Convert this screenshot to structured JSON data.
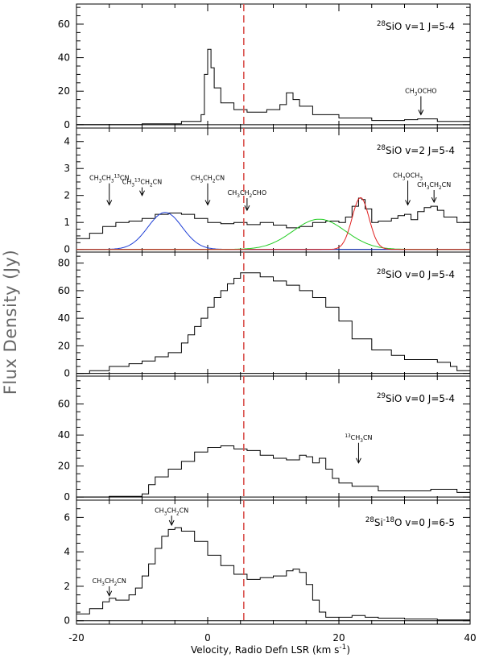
{
  "figure": {
    "ylabel": "Flux Density (Jy)",
    "xlabel": "Velocity, Radio Defn LSR (km s",
    "xlabel_sup": "-1",
    "xlabel_end": ")",
    "xticks": [
      "-20",
      "0",
      "20",
      "40"
    ],
    "marker_velocity": 5.5,
    "marker_color": "#d9534f"
  },
  "chart_data": [
    {
      "type": "line",
      "step": true,
      "label_parts": [
        {
          "t": "28",
          "sup": true
        },
        {
          "t": "SiO v=1 J=5-4"
        }
      ],
      "xlim": [
        -20,
        40
      ],
      "ylim": [
        -2,
        72
      ],
      "yticks": [
        0,
        20,
        40,
        60
      ],
      "x": [
        -20,
        -10,
        -4,
        -1,
        -0.5,
        0,
        0.5,
        1,
        2,
        4,
        6,
        9,
        11,
        12,
        13,
        14,
        16,
        20,
        25,
        30,
        32,
        35,
        40
      ],
      "y": [
        0,
        0.5,
        2,
        6,
        30,
        45,
        34,
        22,
        13,
        9,
        7.5,
        9,
        12,
        19,
        15,
        11,
        6,
        4,
        2.5,
        3,
        3.5,
        2,
        1
      ],
      "annotations": [
        {
          "parts": [
            {
              "t": "CH"
            },
            {
              "t": "3",
              "sub": true
            },
            {
              "t": "OCHO"
            }
          ],
          "x": 32.5,
          "y_tip": 6,
          "y_tail": 17
        }
      ]
    },
    {
      "type": "line",
      "step": true,
      "label_parts": [
        {
          "t": "28",
          "sup": true
        },
        {
          "t": "SiO v=2 J=5-4"
        }
      ],
      "xlim": [
        -20,
        40
      ],
      "ylim": [
        -0.1,
        4.5
      ],
      "yticks": [
        0,
        1,
        2,
        3,
        4
      ],
      "x": [
        -20,
        -18,
        -16,
        -14,
        -12,
        -10,
        -8,
        -6,
        -4,
        -2,
        0,
        2,
        4,
        6,
        8,
        10,
        12,
        14,
        16,
        18,
        20,
        21,
        22,
        23,
        23.5,
        24,
        25,
        26,
        28,
        29,
        30,
        31,
        32,
        33,
        34,
        35,
        36,
        38,
        40
      ],
      "y": [
        0.4,
        0.6,
        0.85,
        1.0,
        1.05,
        1.15,
        1.3,
        1.35,
        1.3,
        1.15,
        1.0,
        0.95,
        1.0,
        0.92,
        1.0,
        0.9,
        0.8,
        0.85,
        1.0,
        1.05,
        1.0,
        1.2,
        1.6,
        1.9,
        1.85,
        1.5,
        1.0,
        1.05,
        1.15,
        1.25,
        1.3,
        1.1,
        1.4,
        1.55,
        1.6,
        1.45,
        1.2,
        1.0,
        0.85
      ],
      "fits": [
        {
          "color": "#1f3fd6",
          "center": -6.5,
          "amplitude": 1.37,
          "sigma": 2.6
        },
        {
          "color": "#22cc22",
          "center": 17,
          "amplitude": 1.12,
          "sigma": 4.0
        },
        {
          "color": "#e02020",
          "center": 23.3,
          "amplitude": 1.92,
          "sigma": 1.3
        }
      ],
      "annotations": [
        {
          "parts": [
            {
              "t": "CH"
            },
            {
              "t": "3",
              "sub": true
            },
            {
              "t": "CH"
            },
            {
              "t": "3",
              "sub": true
            },
            {
              "t": "13",
              "sup": true
            },
            {
              "t": "CN"
            }
          ],
          "x": -15,
          "y_tip": 1.65,
          "y_tail": 2.45,
          "label_above": true
        },
        {
          "parts": [
            {
              "t": "CH"
            },
            {
              "t": "3",
              "sub": true
            },
            {
              "t": "13",
              "sup": true
            },
            {
              "t": "CH"
            },
            {
              "t": "2",
              "sub": true
            },
            {
              "t": "CN"
            }
          ],
          "x": -10,
          "y_tip": 2.0,
          "y_tail": 2.3
        },
        {
          "parts": [
            {
              "t": "CH"
            },
            {
              "t": "3",
              "sub": true
            },
            {
              "t": "CH"
            },
            {
              "t": "2",
              "sub": true
            },
            {
              "t": "CN"
            }
          ],
          "x": 0,
          "y_tip": 1.65,
          "y_tail": 2.45
        },
        {
          "parts": [
            {
              "t": "CH"
            },
            {
              "t": "3",
              "sub": true
            },
            {
              "t": "CH"
            },
            {
              "t": "2",
              "sub": true
            },
            {
              "t": "CHO"
            }
          ],
          "x": 6,
          "y_tip": 1.45,
          "y_tail": 1.9
        },
        {
          "parts": [
            {
              "t": "CH"
            },
            {
              "t": "3",
              "sub": true
            },
            {
              "t": "OCH"
            },
            {
              "t": "3",
              "sub": true
            }
          ],
          "x": 30.5,
          "y_tip": 1.65,
          "y_tail": 2.55,
          "label_above": true
        },
        {
          "parts": [
            {
              "t": "CH"
            },
            {
              "t": "3",
              "sub": true
            },
            {
              "t": "CH"
            },
            {
              "t": "2",
              "sub": true
            },
            {
              "t": "CN"
            }
          ],
          "x": 34.5,
          "y_tip": 1.75,
          "y_tail": 2.2
        }
      ]
    },
    {
      "type": "line",
      "step": true,
      "label_parts": [
        {
          "t": "28",
          "sup": true
        },
        {
          "t": "SiO v=0 J=5-4"
        }
      ],
      "xlim": [
        -20,
        40
      ],
      "ylim": [
        -2,
        88
      ],
      "yticks": [
        0,
        20,
        40,
        60,
        80
      ],
      "x": [
        -20,
        -18,
        -15,
        -12,
        -10,
        -8,
        -6,
        -4,
        -3,
        -2,
        -1,
        0,
        1,
        2,
        3,
        4,
        5,
        6,
        8,
        10,
        12,
        14,
        16,
        18,
        20,
        22,
        25,
        28,
        30,
        32,
        35,
        37,
        38,
        40
      ],
      "y": [
        0,
        2,
        5,
        7,
        9,
        12,
        15,
        22,
        28,
        34,
        40,
        48,
        55,
        60,
        65,
        69,
        73,
        73,
        70,
        67,
        64,
        60,
        55,
        48,
        38,
        25,
        17,
        13,
        10,
        10,
        8,
        5,
        2,
        0
      ],
      "annotations": []
    },
    {
      "type": "line",
      "step": true,
      "label_parts": [
        {
          "t": "29",
          "sup": true
        },
        {
          "t": "SiO v=0 J=5-4"
        }
      ],
      "xlim": [
        -20,
        40
      ],
      "ylim": [
        -2,
        78
      ],
      "yticks": [
        0,
        20,
        40,
        60
      ],
      "x": [
        -20,
        -15,
        -10,
        -9,
        -8,
        -6,
        -4,
        -2,
        0,
        2,
        4,
        6,
        8,
        10,
        12,
        14,
        15,
        16,
        17,
        18,
        19,
        20,
        22,
        24,
        26,
        30,
        34,
        38,
        40
      ],
      "y": [
        0,
        0.5,
        2,
        8,
        13,
        18,
        23,
        29,
        32,
        33,
        31,
        30,
        27,
        25,
        24,
        27,
        26,
        22,
        25,
        18,
        12,
        9,
        7,
        7,
        4,
        4,
        5,
        3,
        2
      ],
      "annotations": [
        {
          "parts": [
            {
              "t": "13",
              "sup": true
            },
            {
              "t": "CH"
            },
            {
              "t": "3",
              "sub": true
            },
            {
              "t": "CN"
            }
          ],
          "x": 23,
          "y_tip": 22,
          "y_tail": 35,
          "label_above": true
        }
      ]
    },
    {
      "type": "line",
      "step": true,
      "label_parts": [
        {
          "t": "28",
          "sup": true
        },
        {
          "t": "Si"
        },
        {
          "t": "-18",
          "sup": true
        },
        {
          "t": "O v=0 J=6-5"
        }
      ],
      "xlim": [
        -20,
        40
      ],
      "ylim": [
        -0.2,
        7.0
      ],
      "yticks": [
        0,
        2,
        4,
        6
      ],
      "x": [
        -20,
        -18,
        -16,
        -15,
        -14,
        -12,
        -11,
        -10,
        -9,
        -8,
        -7,
        -6,
        -5,
        -4,
        -2,
        0,
        2,
        4,
        6,
        8,
        10,
        12,
        13,
        14,
        15,
        16,
        17,
        18,
        20,
        22,
        24,
        26,
        30,
        35,
        40
      ],
      "y": [
        0.4,
        0.7,
        1.1,
        1.3,
        1.2,
        1.5,
        1.9,
        2.6,
        3.3,
        4.2,
        4.9,
        5.3,
        5.4,
        5.2,
        4.6,
        3.8,
        3.2,
        2.7,
        2.4,
        2.5,
        2.6,
        2.9,
        3.0,
        2.8,
        2.1,
        1.2,
        0.5,
        0.2,
        0.2,
        0.3,
        0.2,
        0.15,
        0.1,
        0.05,
        0
      ],
      "annotations": [
        {
          "parts": [
            {
              "t": "CH"
            },
            {
              "t": "3",
              "sub": true
            },
            {
              "t": "CH"
            },
            {
              "t": "2",
              "sub": true
            },
            {
              "t": "CN"
            }
          ],
          "x": -5.5,
          "y_tip": 5.55,
          "y_tail": 6.1,
          "label_above": true
        },
        {
          "parts": [
            {
              "t": "CH"
            },
            {
              "t": "3",
              "sub": true
            },
            {
              "t": "CH"
            },
            {
              "t": "2",
              "sub": true
            },
            {
              "t": "CN"
            }
          ],
          "x": -15,
          "y_tip": 1.45,
          "y_tail": 2.0,
          "label_above": true
        }
      ]
    }
  ]
}
